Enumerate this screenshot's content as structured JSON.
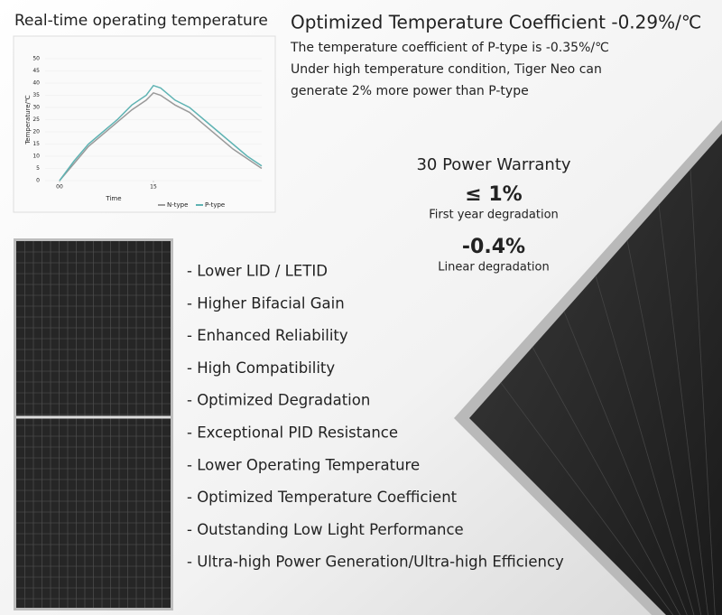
{
  "header": {
    "title": "Real-time operating temperature"
  },
  "temperature_chart": {
    "type": "line",
    "y_label": "Temperature/℃",
    "x_label": "Time",
    "x": [
      2,
      4,
      6,
      8,
      10,
      12,
      14,
      15,
      16,
      18,
      20,
      22,
      24,
      26,
      28,
      30
    ],
    "series": [
      {
        "name": "N-type",
        "color": "#9a9a9a",
        "values": [
          0,
          7,
          14,
          19,
          24,
          29,
          33,
          36,
          35,
          31,
          28,
          23,
          18,
          13,
          9,
          5
        ]
      },
      {
        "name": "P-type",
        "color": "#5fb3b3",
        "values": [
          0,
          8,
          15,
          20,
          25,
          31,
          35,
          39,
          38,
          33,
          30,
          25,
          20,
          15,
          10,
          6
        ]
      }
    ],
    "xlim": [
      0,
      30
    ],
    "xticks": [
      {
        "value": 2,
        "label": "00"
      },
      15
    ],
    "ylim": [
      0,
      50
    ],
    "yticks": [
      0,
      5,
      10,
      15,
      20,
      25,
      30,
      35,
      40,
      45,
      50
    ]
  },
  "coefficient": {
    "title": "Optimized Temperature Coefficient -0.29%/℃",
    "lines": [
      "The temperature coefficient of P-type is -0.35%/℃",
      "Under high temperature condition, Tiger Neo can",
      "generate 2% more power than P-type"
    ]
  },
  "warranty": {
    "title": "30 Power Warranty",
    "items": [
      {
        "value": "≤ 1%",
        "label": "First year degradation"
      },
      {
        "value": "-0.4%",
        "label": "Linear degradation"
      }
    ]
  },
  "features": [
    "- Lower LID / LETID",
    "- Higher Bifacial Gain",
    "- Enhanced Reliability",
    "- High Compatibility",
    "- Optimized Degradation",
    "- Exceptional PID Resistance",
    "- Lower Operating Temperature",
    "- Optimized Temperature Coefficient",
    "- Outstanding Low Light Performance",
    "- Ultra-high Power Generation/Ultra-high Efficiency"
  ]
}
